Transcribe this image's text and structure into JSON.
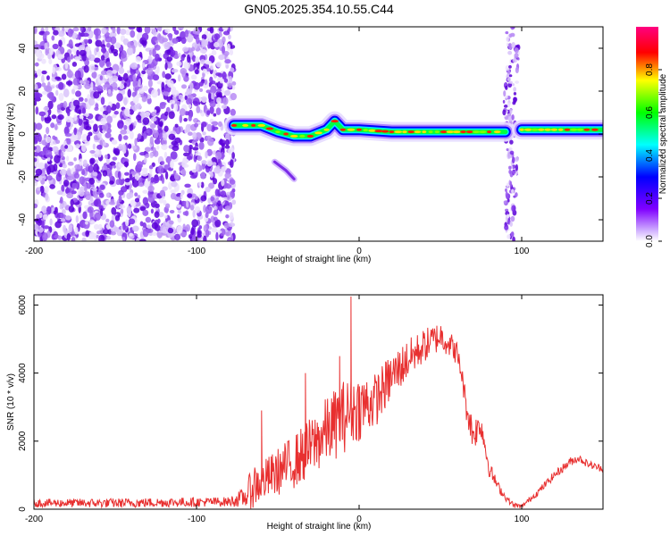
{
  "title": "GN05.2025.354.10.55.C44",
  "chart_data": [
    {
      "type": "heatmap",
      "name": "spectrogram",
      "xlabel": "Height of straight line (km)",
      "ylabel": "Frequency (Hz)",
      "xlim": [
        -200,
        150
      ],
      "ylim": [
        -50,
        50
      ],
      "xticks": [
        -200,
        -100,
        0,
        100
      ],
      "yticks": [
        -40,
        -20,
        0,
        20,
        40
      ],
      "colorbar": {
        "label": "Normalized spectral amplitude",
        "range": [
          0,
          1
        ],
        "ticks": [
          0.0,
          0.2,
          0.4,
          0.6,
          0.8
        ],
        "colors": [
          "#ffffff",
          "#8000ff",
          "#0000ff",
          "#00ffff",
          "#00ff00",
          "#ffff00",
          "#ff0000",
          "#ff00ff"
        ]
      },
      "noise_region_x": [
        -200,
        -77
      ],
      "noise_band_x": [
        90,
        97
      ],
      "signal_trace": {
        "x": [
          -77,
          -70,
          -60,
          -50,
          -40,
          -30,
          -20,
          -15,
          -10,
          0,
          20,
          40,
          60,
          80,
          90,
          96,
          100,
          120,
          140,
          150
        ],
        "freq": [
          4,
          4,
          4,
          1,
          -1,
          -1,
          2,
          6,
          2,
          2,
          1,
          1,
          1,
          1,
          1,
          null,
          2,
          2,
          2,
          2
        ]
      },
      "secondary_trace": {
        "x": [
          -52,
          -45,
          -40
        ],
        "freq": [
          -13,
          -17,
          -21
        ]
      }
    },
    {
      "type": "line",
      "name": "snr",
      "xlabel": "Height of straight line (km)",
      "ylabel": "SNR (10 * v/v)",
      "xlim": [
        -200,
        150
      ],
      "ylim": [
        0,
        6300
      ],
      "xticks": [
        -200,
        -100,
        0,
        100
      ],
      "yticks": [
        0,
        2000,
        4000,
        6000
      ],
      "color": "#e83030",
      "x": [
        -200,
        -150,
        -120,
        -80,
        -70,
        -65,
        -60,
        -50,
        -40,
        -30,
        -20,
        -10,
        -5,
        0,
        10,
        20,
        30,
        40,
        50,
        55,
        60,
        63,
        66,
        70,
        75,
        80,
        85,
        90,
        95,
        100,
        110,
        120,
        130,
        135,
        140,
        145,
        150
      ],
      "y": [
        180,
        180,
        200,
        220,
        350,
        700,
        800,
        1100,
        1400,
        1800,
        2300,
        2700,
        2900,
        3000,
        3200,
        3900,
        4400,
        4800,
        5100,
        4900,
        4600,
        4000,
        3000,
        2200,
        2500,
        1200,
        700,
        350,
        120,
        80,
        500,
        1000,
        1400,
        1500,
        1350,
        1250,
        1200
      ],
      "noise": [
        120,
        140,
        140,
        140,
        300,
        700,
        600,
        700,
        800,
        900,
        1000,
        1100,
        1000,
        1000,
        800,
        700,
        600,
        500,
        450,
        400,
        350,
        300,
        400,
        500,
        400,
        250,
        150,
        100,
        80,
        60,
        100,
        120,
        130,
        120,
        110,
        110,
        110
      ],
      "spikes": [
        {
          "x": -5,
          "y": 6250
        },
        {
          "x": -12,
          "y": 4500
        },
        {
          "x": -33,
          "y": 4000
        },
        {
          "x": -60,
          "y": 2900
        }
      ]
    }
  ]
}
